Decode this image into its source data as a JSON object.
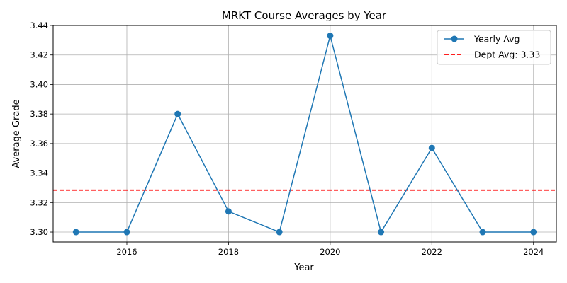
{
  "chart_data": {
    "type": "line",
    "title": "MRKT Course Averages by Year",
    "xlabel": "Year",
    "ylabel": "Average Grade",
    "xlim": [
      2014.55,
      2024.45
    ],
    "ylim": [
      3.2933,
      3.44
    ],
    "x_ticks": [
      2016,
      2018,
      2020,
      2022,
      2024
    ],
    "y_ticks": [
      3.3,
      3.32,
      3.34,
      3.36,
      3.38,
      3.4,
      3.42,
      3.44
    ],
    "y_tick_labels": [
      "3.30",
      "3.32",
      "3.34",
      "3.36",
      "3.38",
      "3.40",
      "3.42",
      "3.44"
    ],
    "grid": true,
    "legend_position": "top-right",
    "series": [
      {
        "name": "Yearly Avg",
        "style": "solid-line-with-circle-markers",
        "color": "#1f77b4",
        "x": [
          2015,
          2016,
          2017,
          2018,
          2019,
          2020,
          2021,
          2022,
          2023,
          2024
        ],
        "y": [
          3.3,
          3.3,
          3.38,
          3.314,
          3.3,
          3.433,
          3.3,
          3.357,
          3.3,
          3.3
        ]
      }
    ],
    "reference_line": {
      "name": "Dept Avg: 3.33",
      "value": 3.3284,
      "style": "dashed",
      "color": "#ff0000"
    }
  }
}
